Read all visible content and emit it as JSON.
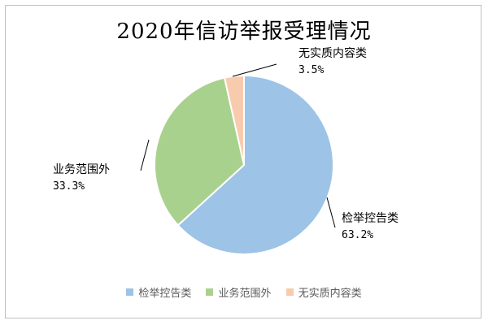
{
  "chart_data": {
    "type": "pie",
    "title": "2020年信访举报受理情况",
    "categories": [
      "检举控告类",
      "业务范围外",
      "无实质内容类"
    ],
    "values": [
      63.2,
      33.3,
      3.5
    ],
    "value_labels": [
      "63.2%",
      "33.3%",
      "3.5%"
    ],
    "colors": [
      "#9DC3E6",
      "#A9D18E",
      "#F8CBAD"
    ],
    "legend_position": "bottom"
  }
}
